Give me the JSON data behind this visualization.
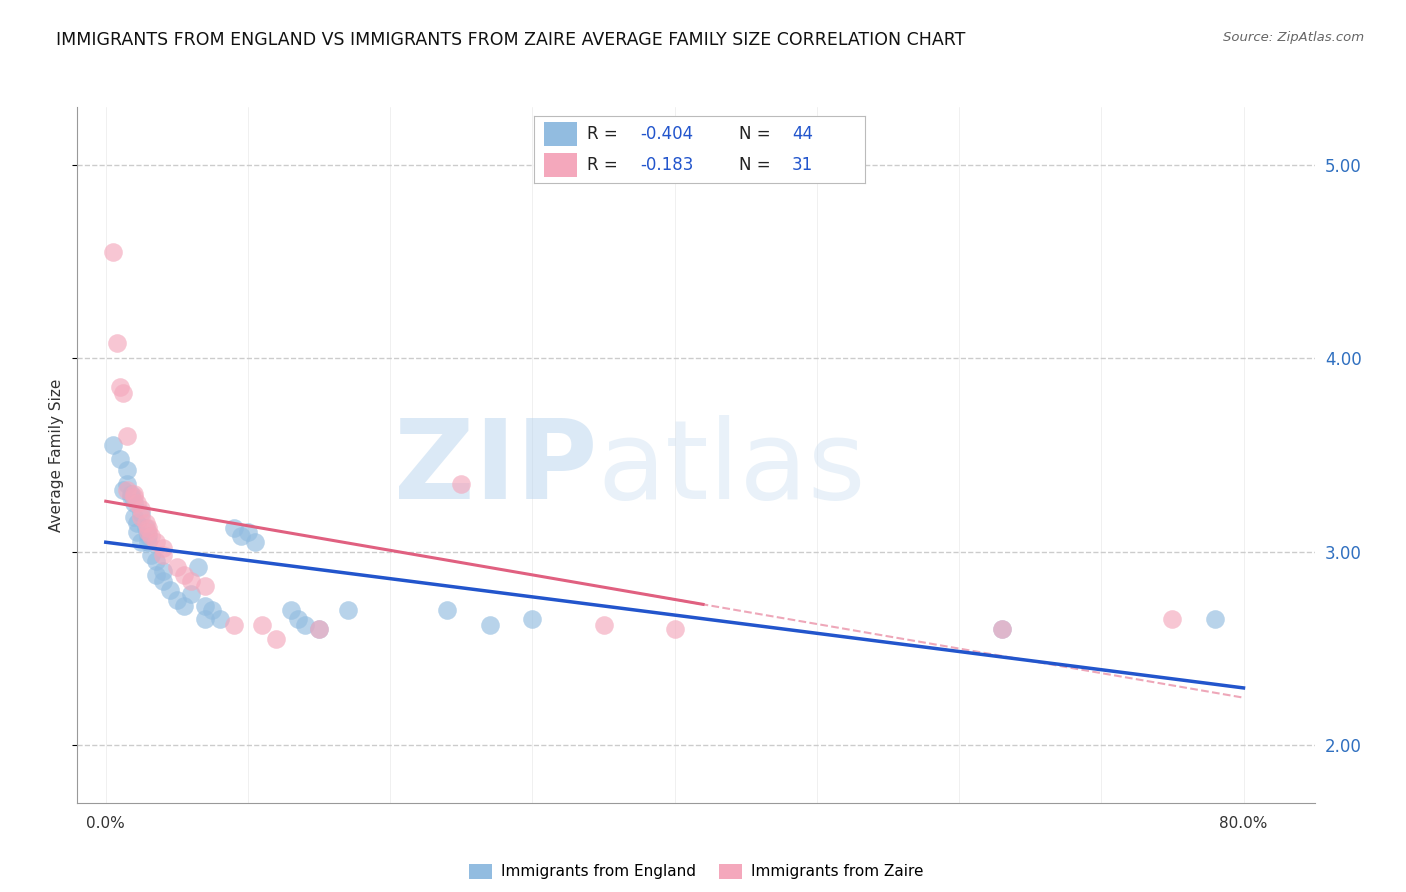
{
  "title": "IMMIGRANTS FROM ENGLAND VS IMMIGRANTS FROM ZAIRE AVERAGE FAMILY SIZE CORRELATION CHART",
  "source": "Source: ZipAtlas.com",
  "ylabel": "Average Family Size",
  "yticks_right": [
    2.0,
    3.0,
    4.0,
    5.0
  ],
  "england_color": "#92bce0",
  "zaire_color": "#f4a8bc",
  "england_line_color": "#2255cc",
  "zaire_line_color": "#e06080",
  "watermark_zip": "ZIP",
  "watermark_atlas": "atlas",
  "england_points": [
    [
      0.5,
      3.55
    ],
    [
      1.0,
      3.48
    ],
    [
      1.2,
      3.32
    ],
    [
      1.5,
      3.42
    ],
    [
      1.5,
      3.35
    ],
    [
      1.8,
      3.3
    ],
    [
      1.8,
      3.28
    ],
    [
      2.0,
      3.18
    ],
    [
      2.0,
      3.25
    ],
    [
      2.2,
      3.15
    ],
    [
      2.2,
      3.1
    ],
    [
      2.5,
      3.2
    ],
    [
      2.5,
      3.05
    ],
    [
      2.8,
      3.12
    ],
    [
      3.0,
      3.05
    ],
    [
      3.0,
      3.08
    ],
    [
      3.2,
      2.98
    ],
    [
      3.5,
      2.88
    ],
    [
      3.5,
      2.95
    ],
    [
      4.0,
      2.9
    ],
    [
      4.0,
      2.85
    ],
    [
      4.5,
      2.8
    ],
    [
      5.0,
      2.75
    ],
    [
      5.5,
      2.72
    ],
    [
      6.0,
      2.78
    ],
    [
      6.5,
      2.92
    ],
    [
      7.0,
      2.72
    ],
    [
      7.0,
      2.65
    ],
    [
      7.5,
      2.7
    ],
    [
      8.0,
      2.65
    ],
    [
      9.0,
      3.12
    ],
    [
      9.5,
      3.08
    ],
    [
      10.0,
      3.1
    ],
    [
      10.5,
      3.05
    ],
    [
      13.0,
      2.7
    ],
    [
      13.5,
      2.65
    ],
    [
      14.0,
      2.62
    ],
    [
      15.0,
      2.6
    ],
    [
      17.0,
      2.7
    ],
    [
      24.0,
      2.7
    ],
    [
      27.0,
      2.62
    ],
    [
      30.0,
      2.65
    ],
    [
      63.0,
      2.6
    ],
    [
      78.0,
      2.65
    ]
  ],
  "zaire_points": [
    [
      0.5,
      4.55
    ],
    [
      0.8,
      4.08
    ],
    [
      1.0,
      3.85
    ],
    [
      1.2,
      3.82
    ],
    [
      1.5,
      3.6
    ],
    [
      1.5,
      3.32
    ],
    [
      2.0,
      3.3
    ],
    [
      2.0,
      3.28
    ],
    [
      2.2,
      3.25
    ],
    [
      2.5,
      3.22
    ],
    [
      2.5,
      3.18
    ],
    [
      2.8,
      3.15
    ],
    [
      3.0,
      3.12
    ],
    [
      3.0,
      3.1
    ],
    [
      3.2,
      3.08
    ],
    [
      3.5,
      3.05
    ],
    [
      4.0,
      3.02
    ],
    [
      4.0,
      2.98
    ],
    [
      5.0,
      2.92
    ],
    [
      5.5,
      2.88
    ],
    [
      6.0,
      2.85
    ],
    [
      7.0,
      2.82
    ],
    [
      9.0,
      2.62
    ],
    [
      11.0,
      2.62
    ],
    [
      12.0,
      2.55
    ],
    [
      15.0,
      2.6
    ],
    [
      25.0,
      3.35
    ],
    [
      35.0,
      2.62
    ],
    [
      40.0,
      2.6
    ],
    [
      63.0,
      2.6
    ],
    [
      75.0,
      2.65
    ]
  ],
  "xlim": [
    -2,
    85
  ],
  "ylim": [
    1.7,
    5.3
  ],
  "background_color": "#ffffff",
  "grid_color": "#cccccc",
  "xtick_positions": [
    0,
    10,
    20,
    30,
    40,
    50,
    60,
    70,
    80
  ],
  "xtick_labels": [
    "0.0%",
    "",
    "",
    "",
    "",
    "",
    "",
    "",
    "80.0%"
  ]
}
